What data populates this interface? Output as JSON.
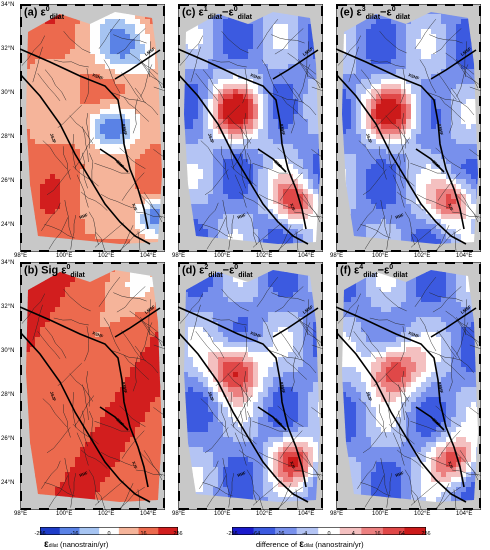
{
  "panels": [
    {
      "id": "a",
      "label": "(a)",
      "symbol": "ε",
      "sub": "dilat",
      "sup": "0",
      "suffix": "",
      "mode": "absolute",
      "seed": 3
    },
    {
      "id": "c",
      "label": "(c)",
      "symbol": "ε",
      "sub": "dilat",
      "sup": "1",
      "minus": "ε",
      "minus_sub": "dilat",
      "minus_sup": "0",
      "mode": "diff",
      "seed": 7
    },
    {
      "id": "e",
      "label": "(e)",
      "symbol": "ε",
      "sub": "dilat",
      "sup": "3",
      "minus": "ε",
      "minus_sub": "dilat",
      "minus_sup": "0",
      "mode": "diff",
      "seed": 11
    },
    {
      "id": "b",
      "label": "(b)",
      "prefix": "Sig",
      "symbol": "ε",
      "sub": "dilat",
      "sup": "0",
      "mode": "sig",
      "seed": 5
    },
    {
      "id": "d",
      "label": "(d)",
      "symbol": "ε",
      "sub": "dilat",
      "sup": "2",
      "minus": "ε",
      "minus_sub": "dilat",
      "minus_sup": "0",
      "mode": "diff",
      "seed": 13
    },
    {
      "id": "f",
      "label": "(f)",
      "symbol": "ε",
      "sub": "dilat",
      "sup": "4",
      "minus": "ε",
      "minus_sub": "dilat",
      "minus_sup": "0",
      "mode": "diff",
      "seed": 17
    }
  ],
  "lat_labels": [
    "34°N",
    "32°N",
    "30°N",
    "28°N",
    "26°N",
    "24°N"
  ],
  "lon_labels": [
    "98°E",
    "100°E",
    "102°E",
    "104°E"
  ],
  "fault_labels": [
    "XSHF",
    "LMSF",
    "ANHF",
    "XJF",
    "RRF",
    "JSJF",
    "SMF"
  ],
  "colorbar_left": {
    "ticks": [
      "-256",
      "-16",
      "0",
      "16",
      "256"
    ],
    "title_symbol": "ε",
    "title_sub": "dilat",
    "title_units": "(nanostrain/yr)",
    "colors": [
      "#1e3cc8",
      "#5a82e6",
      "#a6c4f2",
      "#fefefe",
      "#f5b49a",
      "#ec6a4e",
      "#d21e1e"
    ]
  },
  "colorbar_right": {
    "ticks": [
      "-256",
      "-64",
      "-16",
      "-4",
      "0",
      "4",
      "16",
      "64",
      "256"
    ],
    "title_prefix": "difference of",
    "title_symbol": "ε",
    "title_sub": "dilat",
    "title_units": "(nanostrain/yr)",
    "colors": [
      "#1a1acc",
      "#3c5ae0",
      "#7890ec",
      "#b4c4f4",
      "#ffffff",
      "#f4c0c0",
      "#ec8080",
      "#e04848",
      "#cc1a1a"
    ]
  }
}
